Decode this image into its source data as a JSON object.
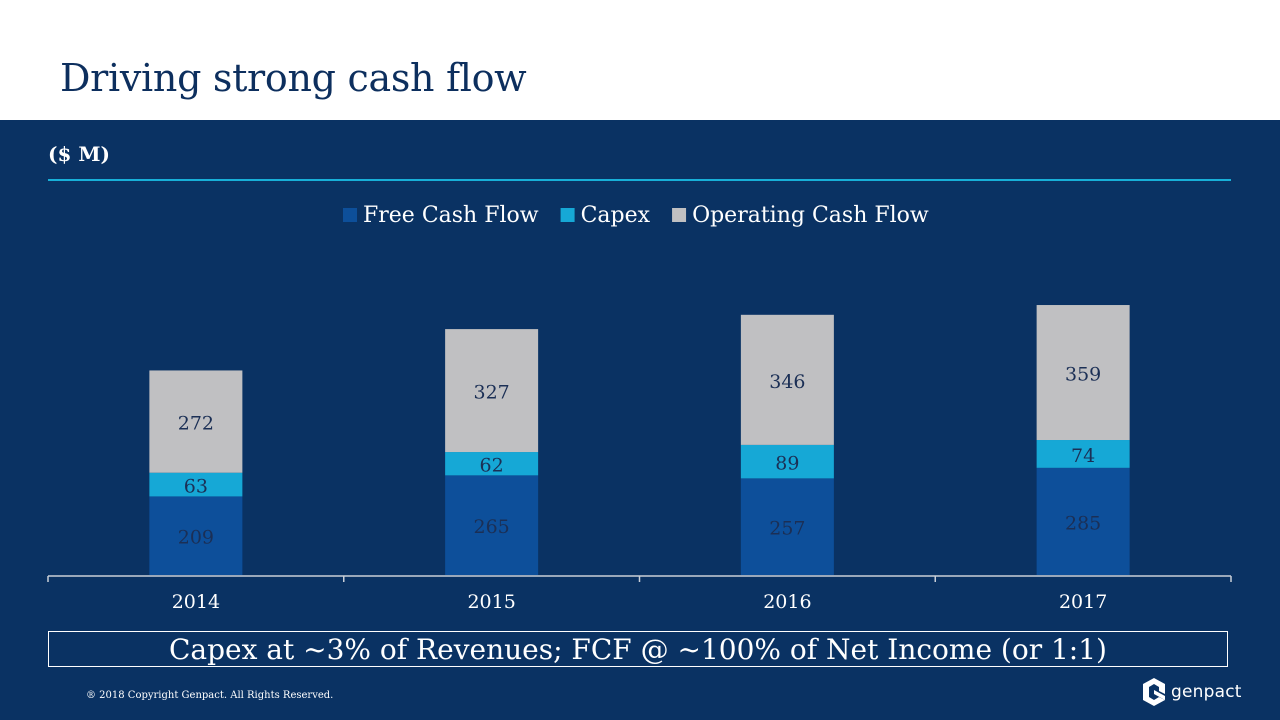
{
  "slide": {
    "title": "Driving strong cash flow",
    "unit_label": "($ M)",
    "callout": "Capex at ~3% of Revenues; FCF @ ~100% of Net Income (or 1:1)",
    "copyright": "® 2018 Copyright Genpact. All Rights Reserved.",
    "logo_text": "genpact",
    "logo_icon": "genpact-logo-icon"
  },
  "colors": {
    "background": "#0a3263",
    "title": "#0d2f5e",
    "accent_rule": "#18b0d8",
    "free_cash_flow": "#0d4f9a",
    "capex": "#16a8d6",
    "operating_cash_flow": "#c0c0c2"
  },
  "chart_data": {
    "type": "bar",
    "stacked": true,
    "categories": [
      "2014",
      "2015",
      "2016",
      "2017"
    ],
    "series": [
      {
        "name": "Free Cash Flow",
        "values": [
          209,
          265,
          257,
          285
        ],
        "color": "#0d4f9a"
      },
      {
        "name": "Capex",
        "values": [
          63,
          62,
          89,
          74
        ],
        "color": "#16a8d6"
      },
      {
        "name": "Operating Cash Flow",
        "values": [
          272,
          327,
          346,
          359
        ],
        "color": "#c0c0c2"
      }
    ],
    "legend_position": "top-center",
    "grid": false
  }
}
